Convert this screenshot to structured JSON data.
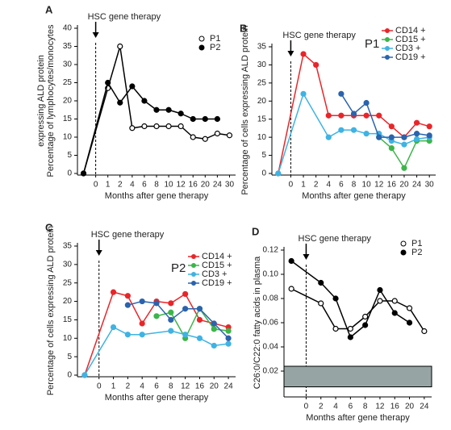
{
  "chart_data": [
    {
      "type": "line",
      "panel": "A",
      "annotation": "HSC gene therapy",
      "x_label": "Months after gene therapy",
      "y_label": [
        "Percentage of lymphocytes/monocytes",
        "expressing ALD protein"
      ],
      "categories": [
        null,
        "0",
        "1",
        "2",
        "4",
        "6",
        "8",
        "10",
        "12",
        "16",
        "20",
        "24",
        "30"
      ],
      "ylim": [
        0,
        40
      ],
      "yticks": [
        0,
        5,
        10,
        15,
        20,
        25,
        30,
        35,
        40
      ],
      "legend": "top-right",
      "series": [
        {
          "name": "P1",
          "color": "#000000",
          "marker": "open",
          "values": [
            0,
            null,
            23.5,
            35,
            12.5,
            13,
            13,
            13,
            13,
            10,
            9.5,
            11,
            10.5
          ]
        },
        {
          "name": "P2",
          "color": "#000000",
          "marker": "filled",
          "values": [
            0,
            null,
            25,
            19.5,
            24,
            20,
            17.5,
            17.5,
            16.5,
            15,
            15,
            15,
            null
          ]
        }
      ]
    },
    {
      "type": "line",
      "panel": "B",
      "annotation": "HSC gene therapy",
      "group_label": "P1",
      "x_label": "Months after gene therapy",
      "y_label": [
        "Percentage of cells expressing ALD protein"
      ],
      "categories": [
        null,
        "0",
        "1",
        "2",
        "4",
        "6",
        "8",
        "10",
        "12",
        "16",
        "20",
        "24",
        "30"
      ],
      "ylim": [
        0,
        35
      ],
      "yticks": [
        0,
        5,
        10,
        15,
        20,
        25,
        30,
        35
      ],
      "legend": "top-right",
      "series": [
        {
          "name": "CD14 +",
          "color": "#e8262a",
          "marker": "filled",
          "values": [
            0,
            null,
            33,
            30,
            16,
            16,
            16,
            16,
            16,
            13,
            10,
            14,
            13
          ]
        },
        {
          "name": "CD15 +",
          "color": "#3cb54a",
          "marker": "filled",
          "values": [
            null,
            null,
            null,
            null,
            null,
            null,
            null,
            null,
            10,
            7,
            1.5,
            9,
            9
          ]
        },
        {
          "name": "CD3 +",
          "color": "#3fb3e3",
          "marker": "filled",
          "values": [
            0,
            null,
            22,
            null,
            10,
            12,
            12,
            11,
            11,
            9,
            8,
            9.5,
            10
          ]
        },
        {
          "name": "CD19 +",
          "color": "#2b63ad",
          "marker": "filled",
          "values": [
            null,
            null,
            null,
            null,
            null,
            22,
            16.5,
            19.5,
            10,
            10,
            10,
            11,
            10.5
          ]
        }
      ]
    },
    {
      "type": "line",
      "panel": "C",
      "annotation": "HSC gene therapy",
      "group_label": "P2",
      "x_label": "Months after gene therapy",
      "y_label": [
        "Percentage of cells expressing ALD protein"
      ],
      "categories": [
        null,
        "0",
        "1",
        "2",
        "4",
        "6",
        "8",
        "12",
        "16",
        "20",
        "24"
      ],
      "ylim": [
        0,
        35
      ],
      "yticks": [
        0,
        5,
        10,
        15,
        20,
        25,
        30,
        35
      ],
      "legend": "top-right",
      "series": [
        {
          "name": "CD14 +",
          "color": "#e8262a",
          "marker": "filled",
          "values": [
            0,
            null,
            22.5,
            21.5,
            14,
            20,
            19.5,
            22,
            15,
            14,
            13
          ]
        },
        {
          "name": "CD15 +",
          "color": "#3cb54a",
          "marker": "filled",
          "values": [
            null,
            null,
            null,
            null,
            null,
            16,
            17,
            10,
            18,
            12.5,
            12
          ]
        },
        {
          "name": "CD3 +",
          "color": "#3fb3e3",
          "marker": "filled",
          "values": [
            0,
            null,
            13,
            11,
            11,
            null,
            12,
            11,
            10,
            8,
            8.5
          ]
        },
        {
          "name": "CD19 +",
          "color": "#2b63ad",
          "marker": "filled",
          "values": [
            null,
            null,
            null,
            19,
            20,
            19.5,
            15,
            18,
            18,
            14,
            10
          ]
        }
      ]
    },
    {
      "type": "line",
      "panel": "D",
      "annotation": "HSC gene therapy",
      "x_label": "Months after gene therapy",
      "y_label": [
        "C26:0/C22:0 fatty acids in plasma"
      ],
      "categories": [
        null,
        "0",
        "2",
        "4",
        "6",
        "8",
        "12",
        "16",
        "20",
        "24"
      ],
      "ylim": [
        0,
        0.12
      ],
      "yticks": [
        0.02,
        0.04,
        0.06,
        0.08,
        {
          "value": 0.1,
          "label": "0.10"
        },
        0.12
      ],
      "legend": "top-right",
      "reference_band": [
        0.007,
        0.024
      ],
      "reference_color": "#97a4a4",
      "series": [
        {
          "name": "P1",
          "color": "#000000",
          "marker": "open",
          "values": [
            0.088,
            null,
            0.076,
            0.055,
            0.055,
            0.065,
            0.078,
            0.078,
            0.072,
            0.053
          ]
        },
        {
          "name": "P2",
          "color": "#000000",
          "marker": "filled",
          "values": [
            0.111,
            null,
            0.093,
            0.08,
            0.048,
            0.058,
            0.087,
            0.068,
            0.06,
            null
          ]
        }
      ]
    }
  ]
}
